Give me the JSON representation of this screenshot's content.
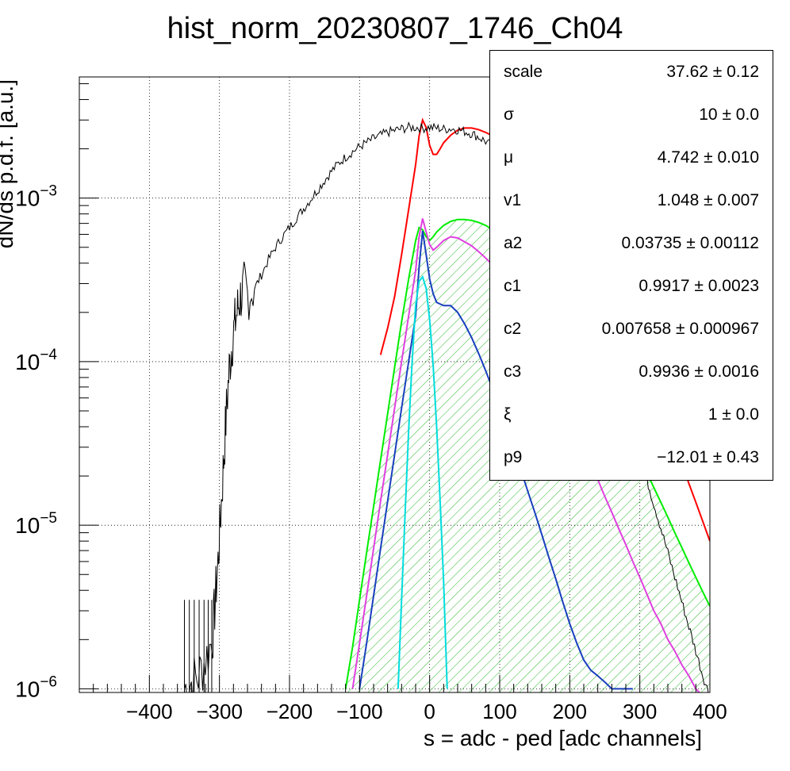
{
  "chart_data": {
    "type": "line",
    "title": "hist_norm_20230807_1746_Ch04",
    "xlabel": "s = adc - ped [adc channels]",
    "ylabel": "dN/ds p.d.f. [a.u.]",
    "xlim": [
      -500,
      400
    ],
    "ylim": [
      9.5e-07,
      0.0055
    ],
    "yscale": "log",
    "grid": true,
    "x_ticks": [
      -400,
      -300,
      -200,
      -100,
      0,
      100,
      200,
      300,
      400
    ],
    "x_tick_labels": [
      "−400",
      "−300",
      "−200",
      "−100",
      "0",
      "100",
      "200",
      "300",
      "400"
    ],
    "y_ticks": [
      {
        "value": 0.001,
        "base": "10",
        "exp": "−3"
      },
      {
        "value": 0.0001,
        "base": "10",
        "exp": "−4"
      },
      {
        "value": 1e-05,
        "base": "10",
        "exp": "−5"
      },
      {
        "value": 1e-06,
        "base": "10",
        "exp": "−6"
      }
    ],
    "series": [
      {
        "color": "#000000",
        "style": "histogram",
        "x": [
          -350,
          -340,
          -330,
          -320,
          -310,
          -306,
          -302,
          -298,
          -294,
          -290,
          -286,
          -282,
          -278,
          -274,
          -270,
          -265,
          -260,
          -250,
          -240,
          -230,
          -220,
          -210,
          -200,
          -190,
          -180,
          -170,
          -160,
          -150,
          -140,
          -130,
          -120,
          -110,
          -100,
          -90,
          -80,
          -70,
          -60,
          -50,
          -40,
          -30,
          -20,
          -10,
          0,
          10,
          20,
          30,
          40,
          50,
          60,
          70,
          80,
          90,
          100,
          110,
          120,
          130,
          140,
          150,
          160,
          170,
          180,
          190,
          200,
          210,
          220,
          230,
          240,
          250,
          260,
          270,
          280,
          290,
          300,
          310,
          320,
          330,
          340,
          350,
          360,
          370,
          380,
          390,
          400
        ],
        "y": [
          1e-06,
          1.1e-06,
          1.2e-06,
          1.5e-06,
          2e-06,
          3.5e-06,
          6e-06,
          1.2e-05,
          2.5e-05,
          5e-05,
          9e-05,
          0.00013,
          0.00017,
          0.00021,
          0.00025,
          0.00028,
          0.00026,
          0.00028,
          0.00034,
          0.00042,
          0.0005,
          0.00058,
          0.00066,
          0.00076,
          0.00086,
          0.00098,
          0.00112,
          0.00128,
          0.00146,
          0.00163,
          0.00178,
          0.00192,
          0.00206,
          0.00218,
          0.00231,
          0.00242,
          0.00252,
          0.00259,
          0.00265,
          0.0027,
          0.0027,
          0.00268,
          0.0027,
          0.00268,
          0.00264,
          0.00266,
          0.00262,
          0.00255,
          0.00248,
          0.00236,
          0.00222,
          0.00206,
          0.00188,
          0.0017,
          0.00151,
          0.00133,
          0.00116,
          0.001,
          0.00085,
          0.00072,
          0.0006,
          0.0005,
          0.00041,
          0.00033,
          0.00026,
          0.0002,
          0.000155,
          0.000118,
          9e-05,
          6.7e-05,
          4.9e-05,
          3.6e-05,
          2.6e-05,
          1.9e-05,
          1.35e-05,
          9.6e-06,
          6.8e-06,
          4.8e-06,
          3.4e-06,
          2.4e-06,
          1.7e-06,
          1.2e-06,
          9e-07
        ]
      },
      {
        "color": "#ff0000",
        "x": [
          -70,
          -60,
          -50,
          -40,
          -30,
          -20,
          -15,
          -10,
          -5,
          0,
          5,
          10,
          15,
          20,
          30,
          40,
          50,
          60,
          70,
          80,
          90,
          100,
          110,
          120,
          130,
          140,
          150,
          160,
          170,
          180,
          190,
          200,
          210,
          220,
          230,
          240,
          250,
          260,
          270,
          280,
          290,
          300,
          310,
          320,
          330,
          340,
          350,
          360,
          370,
          380,
          390,
          400
        ],
        "y": [
          0.00011,
          0.00016,
          0.00025,
          0.00045,
          0.00085,
          0.0016,
          0.0024,
          0.003,
          0.0027,
          0.0021,
          0.00185,
          0.00185,
          0.002,
          0.00218,
          0.00242,
          0.0026,
          0.00268,
          0.00268,
          0.00262,
          0.00252,
          0.0024,
          0.00226,
          0.0021,
          0.00194,
          0.00178,
          0.00162,
          0.00146,
          0.0013,
          0.00115,
          0.001,
          0.00087,
          0.00075,
          0.00064,
          0.00054,
          0.00045,
          0.00038,
          0.00031,
          0.00026,
          0.000212,
          0.000172,
          0.000139,
          0.000111,
          8.8e-05,
          6.9e-05,
          5.3e-05,
          4.1e-05,
          3.1e-05,
          2.4e-05,
          1.8e-05,
          1.38e-05,
          1.05e-05,
          8e-06
        ]
      },
      {
        "color": "#00ee00",
        "fill": "hatch",
        "x": [
          -120,
          -110,
          -100,
          -90,
          -80,
          -70,
          -60,
          -50,
          -40,
          -30,
          -20,
          -15,
          -10,
          -5,
          0,
          5,
          10,
          20,
          30,
          40,
          50,
          60,
          70,
          80,
          90,
          100,
          110,
          120,
          130,
          140,
          150,
          160,
          170,
          180,
          190,
          200,
          210,
          220,
          230,
          240,
          250,
          260,
          270,
          280,
          290,
          300,
          310,
          320,
          330,
          340,
          350,
          360,
          370,
          380,
          390,
          400
        ],
        "y": [
          1e-06,
          1.8e-06,
          3.5e-06,
          6.8e-06,
          1.3e-05,
          2.5e-05,
          4.8e-05,
          9.2e-05,
          0.000175,
          0.00032,
          0.00055,
          0.00066,
          0.00064,
          0.00058,
          0.00055,
          0.00058,
          0.00062,
          0.00068,
          0.00072,
          0.00074,
          0.00074,
          0.00073,
          0.00071,
          0.00068,
          0.00064,
          0.0006,
          0.00055,
          0.0005,
          0.00045,
          0.0004,
          0.00036,
          0.00031,
          0.00027,
          0.000235,
          0.0002,
          0.00017,
          0.000145,
          0.000122,
          0.000102,
          8.5e-05,
          7e-05,
          5.8e-05,
          4.8e-05,
          3.9e-05,
          3.2e-05,
          2.6e-05,
          2.1e-05,
          1.7e-05,
          1.38e-05,
          1.12e-05,
          9e-06,
          7.3e-06,
          5.9e-06,
          4.8e-06,
          3.9e-06,
          3.2e-06
        ]
      },
      {
        "color": "#e040e0",
        "x": [
          -110,
          -100,
          -90,
          -80,
          -70,
          -60,
          -50,
          -40,
          -30,
          -20,
          -15,
          -10,
          -5,
          0,
          5,
          10,
          20,
          30,
          40,
          50,
          60,
          70,
          80,
          90,
          100,
          110,
          120,
          130,
          140,
          150,
          160,
          170,
          180,
          190,
          200,
          210,
          220,
          230,
          240,
          250,
          260,
          270,
          280,
          290,
          300,
          310,
          320,
          330,
          340,
          350,
          360,
          370,
          380,
          390,
          400
        ],
        "y": [
          1e-06,
          1.9e-06,
          3.7e-06,
          7.2e-06,
          1.4e-05,
          2.7e-05,
          5.2e-05,
          0.0001,
          0.00019,
          0.00036,
          0.00058,
          0.00075,
          0.00062,
          0.00052,
          0.00048,
          0.0005,
          0.00055,
          0.00058,
          0.00057,
          0.00054,
          0.00051,
          0.00047,
          0.00043,
          0.00039,
          0.00035,
          0.0003,
          0.00026,
          0.00022,
          0.00018,
          0.00015,
          0.00012,
          9.8e-05,
          7.8e-05,
          6.2e-05,
          4.9e-05,
          3.9e-05,
          3.1e-05,
          2.5e-05,
          1.9e-05,
          1.5e-05,
          1.2e-05,
          9.5e-06,
          7.6e-06,
          6e-06,
          4.8e-06,
          3.8e-06,
          3e-06,
          2.5e-06,
          2e-06,
          1.7e-06,
          1.4e-06,
          1.2e-06,
          1e-06,
          9e-07,
          8e-07
        ]
      },
      {
        "color": "#1a3fbf",
        "x": [
          -100,
          -90,
          -80,
          -70,
          -60,
          -50,
          -40,
          -30,
          -20,
          -15,
          -10,
          -5,
          0,
          5,
          10,
          20,
          30,
          40,
          50,
          60,
          70,
          80,
          90,
          100,
          110,
          120,
          130,
          140,
          150,
          160,
          170,
          180,
          190,
          200,
          210,
          220,
          230,
          240,
          250,
          260,
          270,
          280,
          290
        ],
        "y": [
          1e-06,
          1.9e-06,
          3.7e-06,
          7.2e-06,
          1.4e-05,
          2.7e-05,
          5.2e-05,
          0.0001,
          0.00019,
          0.00038,
          0.00063,
          0.00045,
          0.00032,
          0.00026,
          0.00023,
          0.00022,
          0.00022,
          0.0002,
          0.00017,
          0.00014,
          0.000112,
          8.8e-05,
          6.8e-05,
          5.2e-05,
          3.9e-05,
          2.9e-05,
          2.2e-05,
          1.62e-05,
          1.2e-05,
          8.8e-06,
          6.4e-06,
          4.7e-06,
          3.4e-06,
          2.5e-06,
          1.9e-06,
          1.5e-06,
          1.3e-06,
          1.2e-06,
          1.1e-06,
          1e-06,
          1e-06,
          1e-06,
          1e-06
        ]
      },
      {
        "color": "#00dddd",
        "x": [
          -45,
          -40,
          -35,
          -30,
          -25,
          -20,
          -15,
          -10,
          -5,
          0,
          5,
          10,
          15,
          20,
          25
        ],
        "y": [
          1e-06,
          3.5e-06,
          1.2e-05,
          3.8e-05,
          0.0001,
          0.00022,
          0.00031,
          0.00033,
          0.00028,
          0.00018,
          9.5e-05,
          4e-05,
          1.4e-05,
          4.5e-06,
          1e-06
        ]
      }
    ]
  },
  "stats": {
    "rows": [
      {
        "name": "scale",
        "value": "37.62 ± 0.12"
      },
      {
        "name": "σ",
        "value": "10 ± 0.0"
      },
      {
        "name": "μ",
        "value": "4.742 ± 0.010"
      },
      {
        "name": "v1",
        "value": "1.048 ± 0.007"
      },
      {
        "name": "a2",
        "value": "0.03735 ± 0.00112"
      },
      {
        "name": "c1",
        "value": "0.9917 ± 0.0023"
      },
      {
        "name": "c2",
        "value": "0.007658 ± 0.000967"
      },
      {
        "name": "c3",
        "value": "0.9936 ± 0.0016"
      },
      {
        "name": "ξ",
        "value": "1 ± 0.0"
      },
      {
        "name": "p9",
        "value": "−12.01 ± 0.43"
      }
    ]
  }
}
